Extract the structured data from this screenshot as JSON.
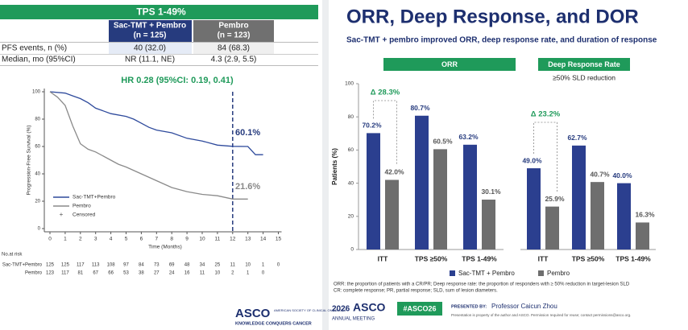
{
  "table": {
    "title": "TPS 1-49%",
    "columns": [
      {
        "name": "Sac-TMT + Pembro",
        "n": "(n = 125)"
      },
      {
        "name": "Pembro",
        "n": "(n = 123)"
      }
    ],
    "rows": [
      [
        "PFS events, n (%)",
        "40 (32.0)",
        "84 (68.3)"
      ],
      [
        "Median, mo (95%CI)",
        "NR (11.1, NE)",
        "4.3 (2.9, 5.5)"
      ]
    ]
  },
  "chart_data": [
    {
      "type": "line",
      "title": "HR 0.28 (95%CI: 0.19, 0.41)",
      "x_label": "Time (Months)",
      "y_label": "Progression-Free Survival (%)",
      "xlim": [
        0,
        15
      ],
      "xticks": [
        0,
        1,
        2,
        3,
        4,
        5,
        6,
        7,
        8,
        9,
        10,
        11,
        12,
        13,
        14,
        15
      ],
      "ylim": [
        0,
        100
      ],
      "yticks": [
        0,
        20,
        40,
        60,
        80,
        100
      ],
      "reference_x": 12,
      "series": [
        {
          "name": "Sac-TMT+Pembro",
          "color": "#2e4a9c",
          "x": [
            0,
            1,
            1.5,
            2,
            2.5,
            3,
            3.5,
            4,
            5,
            5.5,
            6,
            6.5,
            7,
            8,
            9,
            10,
            11,
            12,
            13,
            13.5,
            14
          ],
          "values": [
            100,
            99,
            97,
            95,
            92,
            88,
            86,
            84,
            82,
            80,
            77,
            74,
            72,
            70,
            66,
            64,
            61,
            60.1,
            60,
            54,
            54
          ]
        },
        {
          "name": "Pembro",
          "color": "#8a8a8a",
          "x": [
            0,
            0.5,
            1,
            1.5,
            2,
            2.5,
            3,
            4,
            4.5,
            5,
            6,
            7,
            8,
            9,
            10,
            11,
            12,
            13
          ],
          "values": [
            100,
            96,
            90,
            75,
            62,
            58,
            56,
            50,
            47,
            45,
            40,
            35,
            30,
            27,
            25,
            24,
            21.6,
            21.6
          ]
        }
      ],
      "censored_label": "Censored",
      "annotations": [
        "60.1%",
        "21.6%"
      ]
    },
    {
      "type": "bar",
      "title": "ORR",
      "y_label": "Patients (%)",
      "ylim": [
        0,
        100
      ],
      "yticks": [
        0,
        20,
        40,
        60,
        80,
        100
      ],
      "categories": [
        "ITT",
        "TPS ≥50%",
        "TPS 1-49%"
      ],
      "annotation": "Δ 28.3%",
      "legend": true,
      "series": [
        {
          "name": "Sac-TMT + Pembro",
          "color": "#2b3f8f",
          "values": [
            70.2,
            80.7,
            63.2
          ],
          "value_labels": [
            "70.2%",
            "80.7%",
            "63.2%"
          ]
        },
        {
          "name": "Pembro",
          "color": "#6e6e6e",
          "values": [
            42.0,
            60.5,
            30.1
          ],
          "value_labels": [
            "42.0%",
            "60.5%",
            "30.1%"
          ]
        }
      ]
    },
    {
      "type": "bar",
      "title": "Deep Response Rate",
      "subtitle": "≥50% SLD reduction",
      "ylim": [
        0,
        100
      ],
      "categories": [
        "ITT",
        "TPS ≥50%",
        "TPS 1-49%"
      ],
      "annotation": "Δ 23.2%",
      "series": [
        {
          "color": "#2b3f8f",
          "values": [
            49.0,
            62.7,
            40.0
          ],
          "value_labels": [
            "49.0%",
            "62.7%",
            "40.0%"
          ]
        },
        {
          "color": "#6e6e6e",
          "values": [
            25.9,
            40.7,
            16.3
          ],
          "value_labels": [
            "25.9%",
            "40.7%",
            "16.3%"
          ]
        }
      ]
    }
  ],
  "risk_table": {
    "title": "No.at risk",
    "rows": [
      {
        "name": "Sac-TMT+Pembro",
        "values": [
          125,
          125,
          117,
          113,
          108,
          97,
          84,
          73,
          69,
          48,
          34,
          25,
          11,
          10,
          1,
          0
        ]
      },
      {
        "name": "Pembro",
        "values": [
          123,
          117,
          81,
          67,
          66,
          53,
          38,
          27,
          24,
          16,
          11,
          10,
          2,
          1,
          0,
          null
        ]
      }
    ]
  },
  "left_footer": {
    "logo": "ASCO",
    "org": "AMERICAN SOCIETY OF CLINICAL ONCOLOGY",
    "tagline": "KNOWLEDGE CONQUERS CANCER"
  },
  "slide": {
    "title": "ORR, Deep Response, and DOR",
    "subtitle": "Sac-TMT + pembro improved ORR, deep response rate, and duration of response",
    "footnotes": [
      "ORR: the proportion of patients with a CR/PR; Deep response rate: the proportion of responders with ≥ 50% reduction in target-lesion SLD",
      "CR: complete response; PR, partial response; SLD, sum of lesion diameters."
    ],
    "meeting_year": "2026",
    "meeting_name": "ASCO",
    "meeting_sub": "ANNUAL MEETING",
    "hashtag": "#ASCO26",
    "presented_by": "PRESENTED BY:",
    "presenter": "Professor Caicun Zhou",
    "disclaimer": "Presentation is property of the author and ASCO. Permission required for reuse; contact permissions@asco.org."
  }
}
